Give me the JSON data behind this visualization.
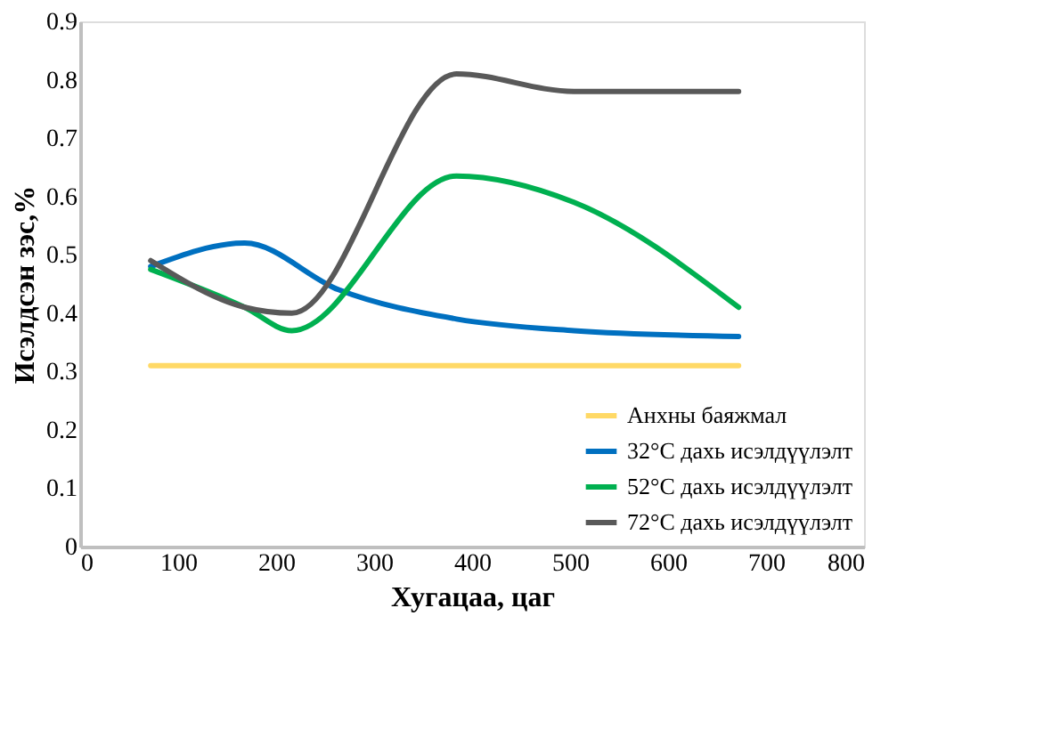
{
  "chart_data": {
    "type": "line",
    "xlabel": "Хугацаа, цаг",
    "ylabel": "Исэлдсэн зэс,%",
    "xlim": [
      0,
      800
    ],
    "xticks": [
      0,
      100,
      200,
      300,
      400,
      500,
      600,
      700,
      800
    ],
    "ylim": [
      0,
      0.9
    ],
    "yticks": [
      0,
      0.1,
      0.2,
      0.3,
      0.4,
      0.5,
      0.6,
      0.7,
      0.8,
      0.9
    ],
    "grid": false,
    "legend": "bottom right",
    "marker": "none",
    "line_style": "solid",
    "series": [
      {
        "name": "Анхны баяжмал",
        "color": "#ffd966",
        "x": [
          72,
          672
        ],
        "values": [
          0.31,
          0.31
        ]
      },
      {
        "name": "32°C дахь исэлдүүлэлт",
        "color": "#0070c0",
        "x": [
          72,
          168,
          264,
          384,
          504,
          672
        ],
        "values": [
          0.48,
          0.52,
          0.44,
          0.39,
          0.37,
          0.36
        ]
      },
      {
        "name": "52°C дахь исэлдүүлэлт",
        "color": "#00b050",
        "x": [
          72,
          168,
          216,
          384,
          504,
          672
        ],
        "values": [
          0.475,
          0.41,
          0.37,
          0.635,
          0.59,
          0.41
        ]
      },
      {
        "name": "72°C дахь исэлдүүлэлт",
        "color": "#595959",
        "x": [
          72,
          168,
          216,
          384,
          504,
          672
        ],
        "values": [
          0.49,
          0.41,
          0.4,
          0.81,
          0.78,
          0.78
        ]
      }
    ]
  }
}
